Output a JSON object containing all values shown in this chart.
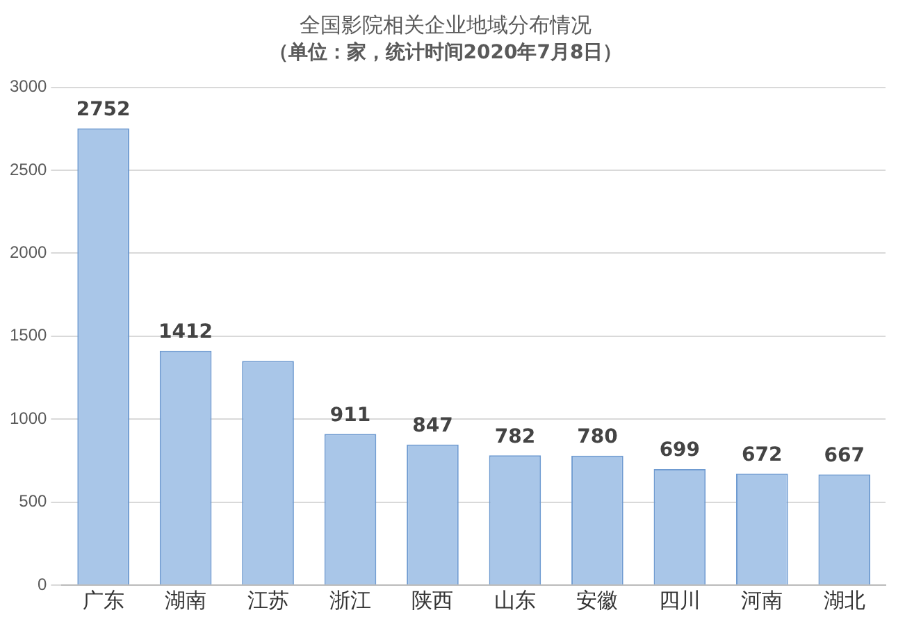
{
  "chart_data": {
    "type": "bar",
    "title": "全国影院相关企业地域分布情况",
    "subtitle": "（单位：家，统计时间2020年7月8日）",
    "categories": [
      "广东",
      "湖南",
      "江苏",
      "浙江",
      "陕西",
      "山东",
      "安徽",
      "四川",
      "河南",
      "湖北"
    ],
    "values": [
      2752,
      1412,
      1350,
      911,
      847,
      782,
      780,
      699,
      672,
      667
    ],
    "value_labels": [
      "2752",
      "1412",
      null,
      "911",
      "847",
      "782",
      "780",
      "699",
      "672",
      "667"
    ],
    "color": "#a9c6e8",
    "ylim": [
      0,
      3000
    ],
    "yticks": [
      0,
      500,
      1000,
      1500,
      2000,
      2500,
      3000
    ],
    "grid": "y",
    "legend": false
  }
}
